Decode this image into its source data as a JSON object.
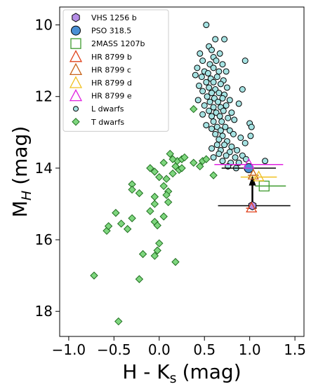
{
  "chart_data": {
    "type": "scatter",
    "xlabel": "H - K",
    "xlabel_sub": "s",
    "xlabel_unit": "(mag)",
    "ylabel": "M",
    "ylabel_sub": "H",
    "ylabel_unit": "(mag)",
    "xlim": [
      -1.1,
      1.6
    ],
    "ylim": [
      18.7,
      9.5
    ],
    "y_inverted": true,
    "x_ticks": [
      -1.0,
      -0.5,
      0.0,
      0.5,
      1.0,
      1.5
    ],
    "x_tick_labels": [
      "−1.0",
      "−0.5",
      "0.0",
      "0.5",
      "1.0",
      "1.5"
    ],
    "y_ticks": [
      10,
      12,
      14,
      16,
      18
    ],
    "y_tick_labels": [
      "10",
      "12",
      "14",
      "16",
      "18"
    ],
    "grid": false,
    "legend_position": "top-left",
    "legend": [
      {
        "label": "VHS 1256 b",
        "marker": "hexagon",
        "color": "#b58de6",
        "edge": "#000000"
      },
      {
        "label": "PSO 318.5",
        "marker": "circle",
        "color": "#4a8fd4",
        "edge": "#000000"
      },
      {
        "label": "2MASS 1207b",
        "marker": "square",
        "color": "none",
        "edge": "#3e9a2e"
      },
      {
        "label": "HR 8799 b",
        "marker": "triangle",
        "color": "none",
        "edge": "#e0401a"
      },
      {
        "label": "HR 8799 c",
        "marker": "triangle",
        "color": "none",
        "edge": "#c8641a"
      },
      {
        "label": "HR 8799 d",
        "marker": "triangle",
        "color": "none",
        "edge": "#f0c020"
      },
      {
        "label": "HR 8799 e",
        "marker": "triangle",
        "color": "none",
        "edge": "#e020e0"
      },
      {
        "label": "L dwarfs",
        "marker": "circle-small",
        "color": "#a6e3e3",
        "edge": "#000000"
      },
      {
        "label": "T dwarfs",
        "marker": "diamond",
        "color": "#7ed67e",
        "edge": "#1f6e1f"
      }
    ],
    "series": [
      {
        "name": "L dwarfs",
        "points": [
          [
            0.52,
            10.0
          ],
          [
            0.62,
            10.4
          ],
          [
            0.55,
            10.6
          ],
          [
            0.72,
            10.4
          ],
          [
            0.58,
            10.7
          ],
          [
            0.45,
            10.8
          ],
          [
            0.6,
            10.9
          ],
          [
            0.67,
            10.8
          ],
          [
            0.48,
            11.0
          ],
          [
            0.56,
            11.1
          ],
          [
            0.63,
            11.0
          ],
          [
            0.7,
            11.1
          ],
          [
            0.42,
            11.2
          ],
          [
            0.5,
            11.3
          ],
          [
            0.6,
            11.2
          ],
          [
            0.66,
            11.3
          ],
          [
            0.54,
            11.35
          ],
          [
            0.74,
            11.3
          ],
          [
            0.95,
            11.0
          ],
          [
            0.4,
            11.4
          ],
          [
            0.47,
            11.45
          ],
          [
            0.57,
            11.5
          ],
          [
            0.64,
            11.45
          ],
          [
            0.71,
            11.55
          ],
          [
            0.52,
            11.6
          ],
          [
            0.6,
            11.6
          ],
          [
            0.68,
            11.65
          ],
          [
            0.44,
            11.7
          ],
          [
            0.55,
            11.75
          ],
          [
            0.62,
            11.8
          ],
          [
            0.75,
            11.75
          ],
          [
            0.48,
            11.85
          ],
          [
            0.58,
            11.9
          ],
          [
            0.66,
            11.9
          ],
          [
            0.72,
            11.95
          ],
          [
            0.92,
            11.8
          ],
          [
            0.53,
            12.0
          ],
          [
            0.61,
            12.05
          ],
          [
            0.7,
            12.05
          ],
          [
            0.43,
            12.1
          ],
          [
            0.56,
            12.15
          ],
          [
            0.65,
            12.15
          ],
          [
            0.78,
            12.1
          ],
          [
            0.5,
            12.25
          ],
          [
            0.6,
            12.3
          ],
          [
            0.68,
            12.3
          ],
          [
            0.74,
            12.25
          ],
          [
            0.88,
            12.2
          ],
          [
            0.55,
            12.4
          ],
          [
            0.63,
            12.45
          ],
          [
            0.71,
            12.4
          ],
          [
            0.8,
            12.45
          ],
          [
            0.48,
            12.5
          ],
          [
            0.58,
            12.55
          ],
          [
            0.67,
            12.55
          ],
          [
            0.76,
            12.6
          ],
          [
            0.6,
            12.7
          ],
          [
            0.69,
            12.7
          ],
          [
            0.83,
            12.65
          ],
          [
            0.52,
            12.8
          ],
          [
            0.64,
            12.85
          ],
          [
            0.73,
            12.85
          ],
          [
            1.0,
            12.75
          ],
          [
            1.02,
            12.85
          ],
          [
            0.58,
            12.9
          ],
          [
            0.68,
            12.95
          ],
          [
            0.78,
            12.95
          ],
          [
            0.62,
            13.05
          ],
          [
            0.7,
            13.1
          ],
          [
            0.82,
            13.05
          ],
          [
            0.66,
            13.2
          ],
          [
            0.75,
            13.25
          ],
          [
            0.9,
            13.15
          ],
          [
            1.01,
            13.1
          ],
          [
            0.72,
            13.35
          ],
          [
            0.8,
            13.4
          ],
          [
            0.95,
            13.3
          ],
          [
            0.68,
            13.5
          ],
          [
            0.78,
            13.55
          ],
          [
            0.86,
            13.5
          ],
          [
            0.74,
            13.65
          ],
          [
            0.84,
            13.7
          ],
          [
            0.92,
            13.65
          ],
          [
            0.7,
            13.8
          ],
          [
            0.79,
            13.85
          ],
          [
            0.88,
            13.85
          ],
          [
            0.96,
            13.75
          ],
          [
            0.76,
            13.95
          ],
          [
            0.85,
            14.0
          ],
          [
            1.17,
            13.8
          ],
          [
            0.66,
            13.6
          ],
          [
            0.6,
            13.7
          ],
          [
            0.58,
            13.45
          ],
          [
            0.64,
            13.35
          ]
        ]
      },
      {
        "name": "T dwarfs",
        "points": [
          [
            -0.72,
            17.0
          ],
          [
            -0.45,
            18.28
          ],
          [
            -0.22,
            17.1
          ],
          [
            0.18,
            16.62
          ],
          [
            -0.58,
            15.75
          ],
          [
            -0.56,
            15.62
          ],
          [
            -0.48,
            15.25
          ],
          [
            -0.35,
            15.7
          ],
          [
            -0.3,
            15.4
          ],
          [
            -0.42,
            15.55
          ],
          [
            -0.05,
            15.5
          ],
          [
            -0.02,
            15.6
          ],
          [
            0.0,
            16.1
          ],
          [
            -0.02,
            16.3
          ],
          [
            -0.05,
            16.45
          ],
          [
            -0.18,
            16.4
          ],
          [
            -0.1,
            15.2
          ],
          [
            -0.05,
            15.0
          ],
          [
            0.05,
            15.35
          ],
          [
            0.1,
            14.95
          ],
          [
            -0.3,
            14.45
          ],
          [
            -0.3,
            14.6
          ],
          [
            -0.22,
            14.7
          ],
          [
            -0.05,
            14.8
          ],
          [
            0.05,
            14.5
          ],
          [
            0.0,
            14.25
          ],
          [
            -0.1,
            14.0
          ],
          [
            -0.05,
            14.1
          ],
          [
            0.08,
            14.3
          ],
          [
            0.1,
            14.65
          ],
          [
            0.08,
            14.75
          ],
          [
            0.15,
            14.15
          ],
          [
            0.18,
            13.95
          ],
          [
            0.2,
            13.8
          ],
          [
            0.25,
            13.75
          ],
          [
            0.28,
            13.7
          ],
          [
            0.22,
            14.05
          ],
          [
            0.25,
            14.0
          ],
          [
            0.05,
            13.85
          ],
          [
            0.12,
            13.6
          ],
          [
            0.15,
            13.75
          ],
          [
            0.38,
            13.85
          ],
          [
            0.45,
            13.95
          ],
          [
            0.48,
            13.8
          ],
          [
            0.52,
            13.75
          ],
          [
            0.6,
            14.2
          ],
          [
            0.38,
            12.35
          ]
        ]
      }
    ],
    "objects": [
      {
        "name": "VHS 1256 b",
        "x": 1.03,
        "y": 15.05,
        "xerr_low": 0.38,
        "xerr_high": 0.42,
        "color": "#b58de6",
        "marker": "hexagon"
      },
      {
        "name": "PSO 318.5",
        "x": 0.99,
        "y": 14.0,
        "xerr_low": 0.3,
        "xerr_high": 0.3,
        "color": "#4a8fd4",
        "marker": "circle"
      },
      {
        "name": "2MASS 1207b",
        "x": 1.16,
        "y": 14.5,
        "xerr_low": 0.1,
        "xerr_high": 0.24,
        "color": "#3e9a2e",
        "marker": "square"
      },
      {
        "name": "HR 8799 b",
        "x": 1.02,
        "y": 15.12,
        "xerr_low": 0.06,
        "xerr_high": 0.06,
        "color": "#e0401a",
        "marker": "triangle"
      },
      {
        "name": "HR 8799 c",
        "x": 1.04,
        "y": 14.2,
        "xerr_low": 0.06,
        "xerr_high": 0.06,
        "color": "#c8641a",
        "marker": "triangle"
      },
      {
        "name": "HR 8799 d",
        "x": 1.1,
        "y": 14.25,
        "xerr_low": 0.2,
        "xerr_high": 0.2,
        "color": "#f0c020",
        "marker": "triangle"
      },
      {
        "name": "HR 8799 e",
        "x": 0.99,
        "y": 13.9,
        "xerr_low": 0.38,
        "xerr_high": 0.38,
        "color": "#e020e0",
        "marker": "triangle"
      }
    ],
    "arrow": {
      "x": 1.03,
      "y_from": 14.95,
      "y_to": 14.25,
      "color": "#000000"
    }
  }
}
